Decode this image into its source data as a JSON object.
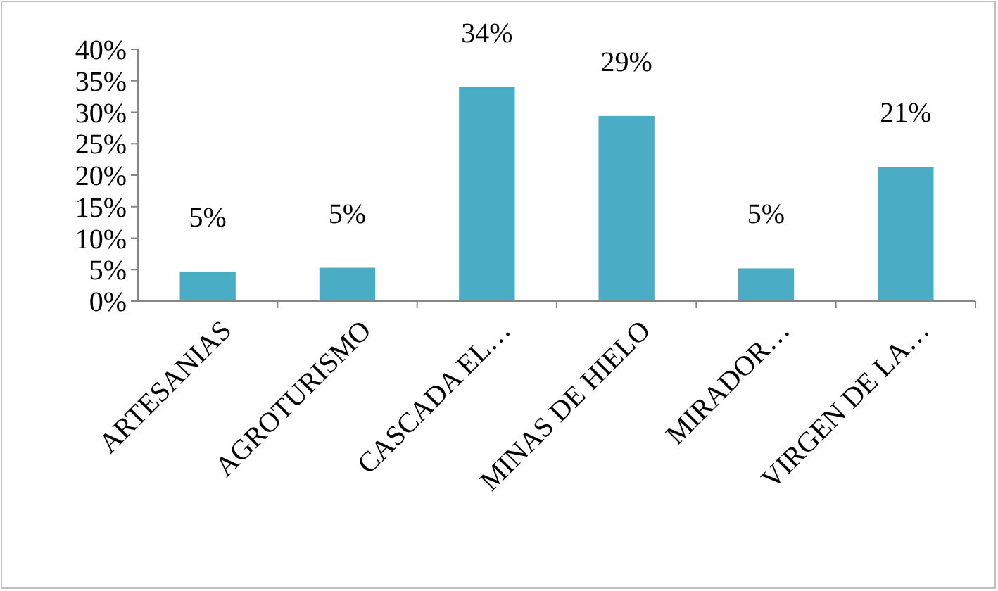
{
  "chart_data": {
    "type": "bar",
    "categories": [
      "ARTESANIAS",
      "AGROTURISMO",
      "CASCADA EL…",
      "MINAS DE HIELO",
      "MIRADOR…",
      "VIRGEN DE  LA…"
    ],
    "values": [
      4.7,
      5.3,
      34,
      29.4,
      5.2,
      21.3
    ],
    "color": "#4bacc6",
    "value_labels": [
      "5%",
      "5%",
      "34%",
      "29%",
      "5%",
      "21%"
    ],
    "ylim": [
      0,
      40
    ],
    "yticks": [
      {
        "value": 0,
        "label": "0%"
      },
      {
        "value": 5,
        "label": "5%"
      },
      {
        "value": 10,
        "label": "10%"
      },
      {
        "value": 15,
        "label": "15%"
      },
      {
        "value": 20,
        "label": "20%"
      },
      {
        "value": 25,
        "label": "25%"
      },
      {
        "value": 30,
        "label": "30%"
      },
      {
        "value": 35,
        "label": "35%"
      },
      {
        "value": 40,
        "label": "40%"
      }
    ],
    "grid": false
  }
}
